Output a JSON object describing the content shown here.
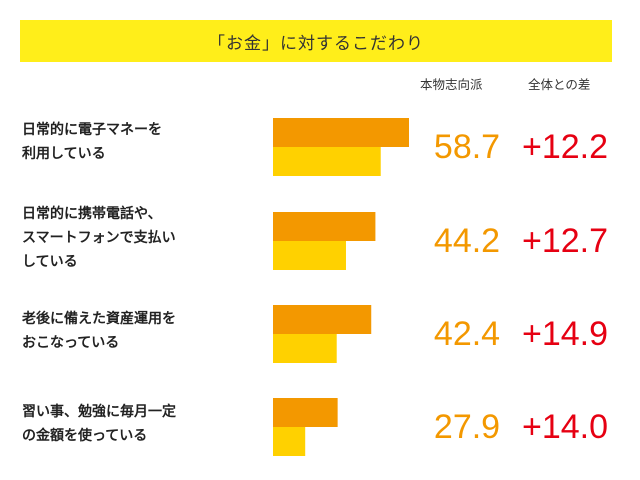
{
  "title": "「お金」に対するこだわり",
  "headers": {
    "value": "本物志向派",
    "diff": "全体との差"
  },
  "colors": {
    "banner": "#FFEE1A",
    "bar_primary": "#F39800",
    "bar_secondary": "#FFD100",
    "value_text": "#F39800",
    "diff_text": "#E60012"
  },
  "chart_data": {
    "type": "bar",
    "orientation": "horizontal",
    "title": "「お金」に対するこだわり",
    "categories": [
      "日常的に電子マネーを\n利用している",
      "日常的に携帯電話や、\nスマートフォンで支払い\nしている",
      "老後に備えた資産運用を\nおこなっている",
      "習い事、勉強に毎月一定\nの金額を使っている"
    ],
    "series": [
      {
        "name": "本物志向派",
        "values": [
          58.7,
          44.2,
          42.4,
          27.9
        ]
      },
      {
        "values": [
          46.5,
          31.5,
          27.5,
          13.9
        ]
      }
    ],
    "value_labels": [
      "58.7",
      "44.2",
      "42.4",
      "27.9"
    ],
    "differences": [
      "+12.2",
      "+12.7",
      "+14.9",
      "+14.0"
    ],
    "xlim": [
      0,
      60
    ],
    "grid": false
  }
}
